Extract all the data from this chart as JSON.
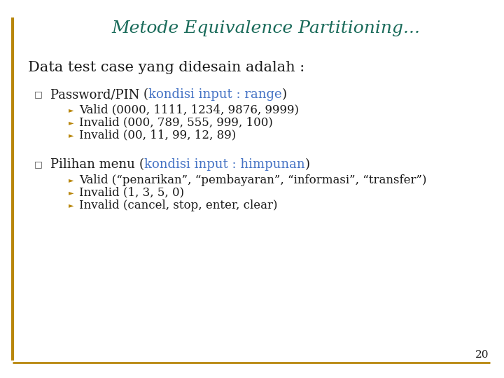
{
  "title": "Metode Equivalence Partitioning...",
  "title_color": "#1a6b5a",
  "title_fontsize": 18,
  "background_color": "#ffffff",
  "section_heading": "Data test case yang didesain adalah :",
  "section_heading_color": "#1a1a1a",
  "section_heading_fontsize": 15,
  "bullet1_black": "Password/PIN ",
  "bullet1_paren_open": "(",
  "bullet1_colored": "kondisi input : range",
  "bullet1_paren_close": ")",
  "bullet1_color": "#4472c4",
  "bullet1_items": [
    "Valid (0000, 1111, 1234, 9876, 9999)",
    "Invalid (000, 789, 555, 999, 100)",
    "Invalid (00, 11, 99, 12, 89)"
  ],
  "bullet2_black": "Pilihan menu ",
  "bullet2_paren_open": "(",
  "bullet2_colored": "kondisi input : himpunan",
  "bullet2_paren_close": ")",
  "bullet2_color": "#4472c4",
  "bullet2_items": [
    "Valid (“penarikan”, “pembayaran”, “informasi”, “transfer”)",
    "Invalid (1, 3, 5, 0)",
    "Invalid (cancel, stop, enter, clear)"
  ],
  "page_number": "20",
  "border_color": "#b8860b",
  "text_color": "#1a1a1a",
  "item_fontsize": 12,
  "bullet_fontsize": 13,
  "arrow_color": "#b8860b",
  "square_color": "#4a4a4a"
}
